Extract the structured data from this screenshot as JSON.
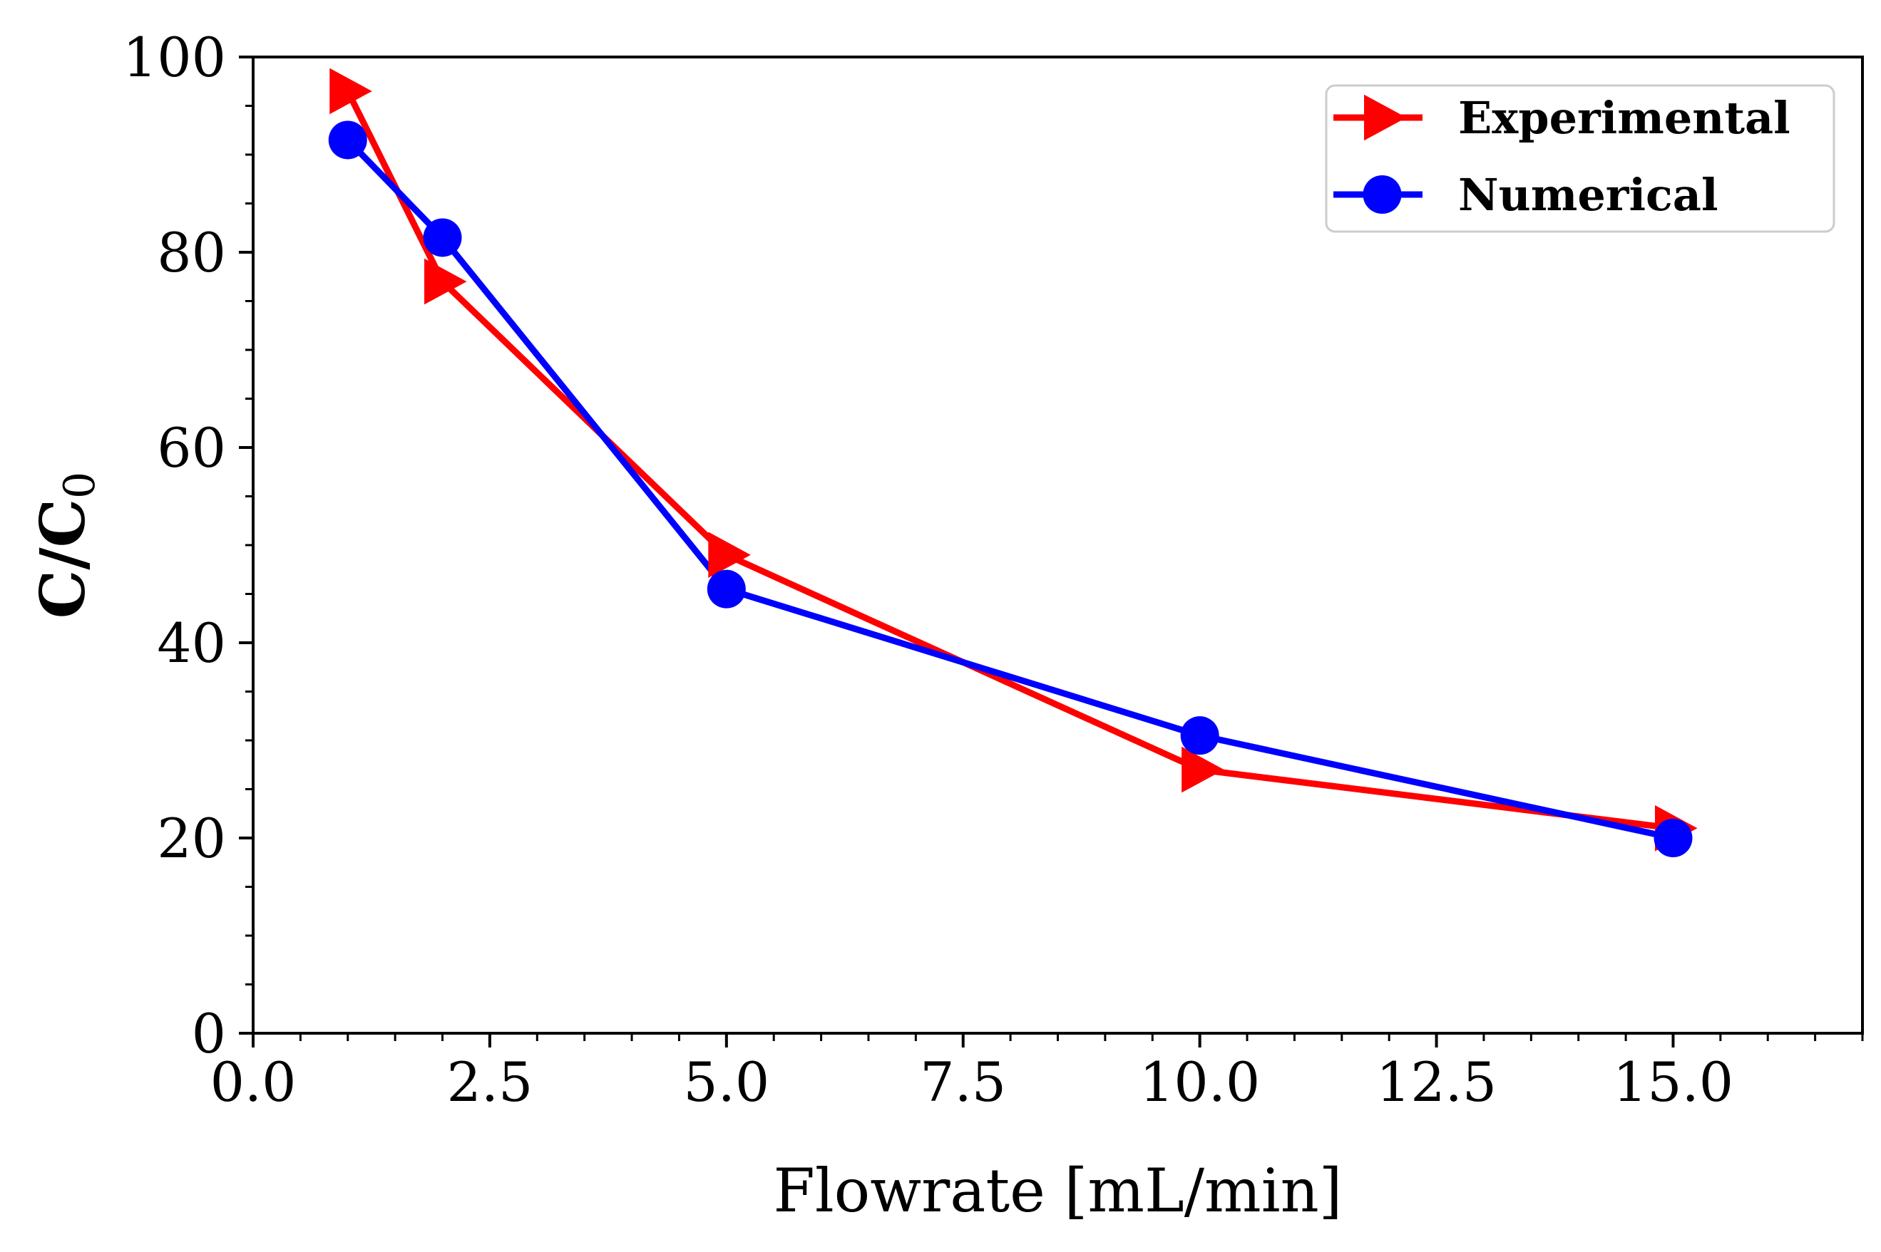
{
  "chart_data": {
    "type": "line",
    "title": "",
    "xlabel": "Flowrate [mL/min]",
    "ylabel": "C/C",
    "ylabel_subscript": "0",
    "xlim": [
      0,
      17
    ],
    "ylim": [
      0,
      100
    ],
    "xticks": [
      0.0,
      2.5,
      5.0,
      7.5,
      10.0,
      12.5,
      15.0
    ],
    "xtick_labels": [
      "0.0",
      "2.5",
      "5.0",
      "7.5",
      "10.0",
      "12.5",
      "15.0"
    ],
    "xticks_minor_step": 0.5,
    "yticks": [
      0,
      20,
      40,
      60,
      80,
      100
    ],
    "ytick_labels": [
      "0",
      "20",
      "40",
      "60",
      "80",
      "100"
    ],
    "yticks_minor_step": 5,
    "grid": false,
    "legend_position": "top-right",
    "series": [
      {
        "name": "Experimental",
        "color": "#ff0000",
        "marker": "triangle-right",
        "x": [
          1,
          2,
          5,
          10,
          15
        ],
        "y": [
          96.5,
          77,
          49,
          27,
          21
        ]
      },
      {
        "name": "Numerical",
        "color": "#0000ff",
        "marker": "circle",
        "x": [
          1,
          2,
          5,
          10,
          15
        ],
        "y": [
          91.5,
          81.5,
          45.5,
          30.5,
          20
        ]
      }
    ]
  }
}
